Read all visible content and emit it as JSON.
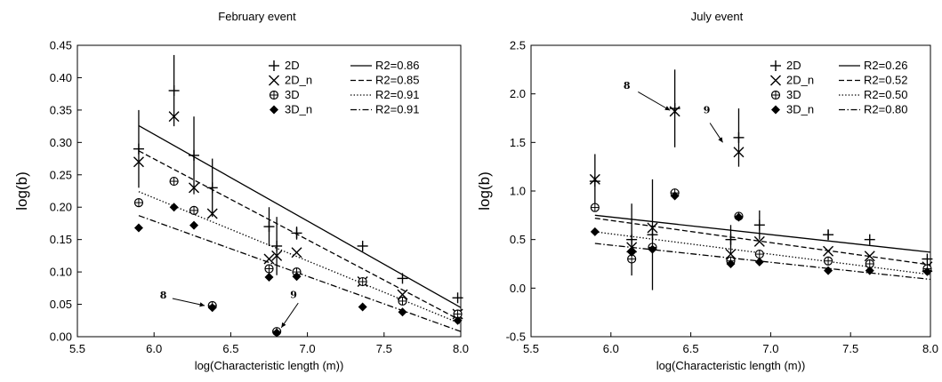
{
  "chart_data": [
    {
      "type": "scatter",
      "title": "February event",
      "xlabel": "log(Characteristic length (m))",
      "ylabel": "log(b)",
      "xlim": [
        5.5,
        8.0
      ],
      "ylim": [
        0.0,
        0.45
      ],
      "xticks": [
        "5.5",
        "6.0",
        "6.5",
        "7.0",
        "7.5",
        "8.0"
      ],
      "yticks": [
        "0.00",
        "0.05",
        "0.10",
        "0.15",
        "0.20",
        "0.25",
        "0.30",
        "0.35",
        "0.40",
        "0.45"
      ],
      "grid": false,
      "legend_position": "top-right",
      "series": [
        {
          "name": "2D",
          "marker": "plus",
          "x": [
            5.9,
            6.13,
            6.26,
            6.38,
            6.75,
            6.8,
            6.93,
            7.36,
            7.62,
            7.98
          ],
          "y": [
            0.29,
            0.38,
            0.28,
            0.23,
            0.17,
            0.14,
            0.16,
            0.14,
            0.09,
            0.06
          ],
          "err": [
            0.06,
            0.055,
            0.06,
            0.045,
            0.03,
            0.045,
            0.01,
            0.0,
            0.0,
            0.0
          ]
        },
        {
          "name": "2D_n",
          "marker": "x",
          "x": [
            5.9,
            6.13,
            6.26,
            6.38,
            6.75,
            6.8,
            6.93,
            7.36,
            7.62,
            7.98
          ],
          "y": [
            0.27,
            0.34,
            0.23,
            0.19,
            0.12,
            0.125,
            0.13,
            0.085,
            0.065,
            0.035
          ]
        },
        {
          "name": "3D",
          "marker": "circle-plus",
          "x": [
            5.9,
            6.13,
            6.26,
            6.38,
            6.75,
            6.8,
            6.93,
            7.36,
            7.62,
            7.98
          ],
          "y": [
            0.207,
            0.24,
            0.195,
            0.048,
            0.105,
            0.008,
            0.1,
            0.085,
            0.055,
            0.035
          ]
        },
        {
          "name": "3D_n",
          "marker": "diamond",
          "x": [
            5.9,
            6.13,
            6.26,
            6.38,
            6.75,
            6.8,
            6.93,
            7.36,
            7.62,
            7.98
          ],
          "y": [
            0.168,
            0.2,
            0.172,
            0.045,
            0.092,
            0.006,
            0.093,
            0.046,
            0.038,
            0.025
          ]
        }
      ],
      "fits": [
        {
          "label": "R2=0.86",
          "style": "solid",
          "x": [
            5.9,
            8.0
          ],
          "y": [
            0.326,
            0.045
          ]
        },
        {
          "label": "R2=0.85",
          "style": "dashed",
          "x": [
            5.9,
            8.0
          ],
          "y": [
            0.287,
            0.025
          ]
        },
        {
          "label": "R2=0.91",
          "style": "dotted",
          "x": [
            5.9,
            8.0
          ],
          "y": [
            0.224,
            0.02
          ]
        },
        {
          "label": "R2=0.91",
          "style": "dashdot",
          "x": [
            5.9,
            8.0
          ],
          "y": [
            0.187,
            0.008
          ]
        }
      ],
      "annotations": [
        {
          "text": "8",
          "tx": 6.06,
          "ty": 0.059,
          "ax1": 6.12,
          "ay1": 0.059,
          "ax2": 6.33,
          "ay2": 0.048
        },
        {
          "text": "9",
          "tx": 6.91,
          "ty": 0.06,
          "ax1": 6.94,
          "ay1": 0.052,
          "ax2": 6.83,
          "ay2": 0.014
        }
      ]
    },
    {
      "type": "scatter",
      "title": "July event",
      "xlabel": "log(Characteristic length (m))",
      "ylabel": "log(b)",
      "xlim": [
        5.5,
        8.0
      ],
      "ylim": [
        -0.5,
        2.5
      ],
      "xticks": [
        "5.5",
        "6.0",
        "6.5",
        "7.0",
        "7.5",
        "8.0"
      ],
      "yticks": [
        "-0.5",
        "0.0",
        "0.5",
        "1.0",
        "1.5",
        "2.0",
        "2.5"
      ],
      "grid": false,
      "legend_position": "top-right",
      "series": [
        {
          "name": "2D",
          "marker": "plus",
          "x": [
            5.9,
            6.13,
            6.26,
            6.4,
            6.75,
            6.8,
            6.93,
            7.36,
            7.62,
            7.98
          ],
          "y": [
            1.1,
            0.5,
            0.55,
            1.85,
            0.5,
            1.55,
            0.65,
            0.55,
            0.5,
            0.3
          ],
          "err": [
            0.28,
            0.37,
            0.57,
            0.4,
            0.15,
            0.3,
            0.15,
            0.05,
            0.0,
            0.0
          ]
        },
        {
          "name": "2D_n",
          "marker": "x",
          "x": [
            5.9,
            6.13,
            6.26,
            6.4,
            6.75,
            6.8,
            6.93,
            7.36,
            7.62,
            7.98
          ],
          "y": [
            1.12,
            0.42,
            0.62,
            1.82,
            0.35,
            1.4,
            0.48,
            0.38,
            0.33,
            0.22
          ]
        },
        {
          "name": "3D",
          "marker": "circle-plus",
          "x": [
            5.9,
            6.13,
            6.26,
            6.4,
            6.75,
            6.8,
            6.93,
            7.36,
            7.62,
            7.98
          ],
          "y": [
            0.83,
            0.3,
            0.42,
            0.98,
            0.28,
            0.74,
            0.35,
            0.28,
            0.25,
            0.2
          ]
        },
        {
          "name": "3D_n",
          "marker": "diamond",
          "x": [
            5.9,
            6.13,
            6.26,
            6.4,
            6.75,
            6.8,
            6.93,
            7.36,
            7.62,
            7.98
          ],
          "y": [
            0.58,
            0.37,
            0.4,
            0.95,
            0.25,
            0.73,
            0.27,
            0.18,
            0.18,
            0.17
          ]
        }
      ],
      "fits": [
        {
          "label": "R2=0.26",
          "style": "solid",
          "x": [
            5.9,
            8.0
          ],
          "y": [
            0.75,
            0.37
          ]
        },
        {
          "label": "R2=0.52",
          "style": "dashed",
          "x": [
            5.9,
            8.0
          ],
          "y": [
            0.72,
            0.24
          ]
        },
        {
          "label": "R2=0.50",
          "style": "dotted",
          "x": [
            5.9,
            8.0
          ],
          "y": [
            0.58,
            0.14
          ]
        },
        {
          "label": "R2=0.80",
          "style": "dashdot",
          "x": [
            5.9,
            8.0
          ],
          "y": [
            0.46,
            0.09
          ]
        }
      ],
      "annotations": [
        {
          "text": "8",
          "tx": 6.1,
          "ty": 2.05,
          "ax1": 6.17,
          "ay1": 2.02,
          "ax2": 6.37,
          "ay2": 1.83
        },
        {
          "text": "9",
          "tx": 6.6,
          "ty": 1.8,
          "ax1": 6.62,
          "ay1": 1.7,
          "ax2": 6.7,
          "ay2": 1.5
        }
      ]
    }
  ]
}
